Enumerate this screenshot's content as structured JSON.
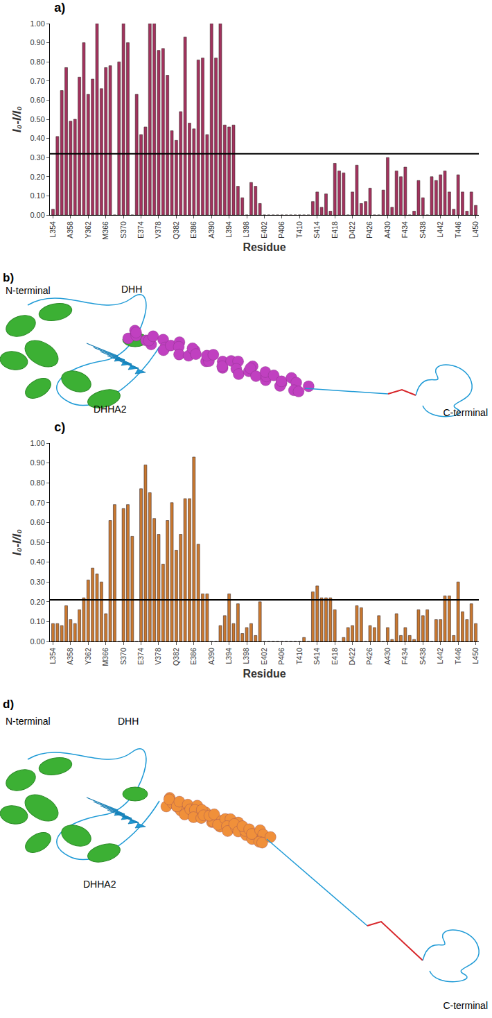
{
  "chart_data": [
    {
      "type": "bar",
      "title": "a)",
      "x_label": "Residue",
      "y_label": "I₀-I/I₀",
      "color": "#a3325e",
      "grid": false,
      "threshold": 0.32,
      "ylim": [
        0,
        1
      ],
      "yticks": [
        {
          "value": 0,
          "label": "0.00"
        },
        {
          "value": 0.1,
          "label": "0.10"
        },
        {
          "value": 0.2,
          "label": "0.20"
        },
        {
          "value": 0.3,
          "label": "0.30"
        },
        {
          "value": 0.4,
          "label": "0.40"
        },
        {
          "value": 0.5,
          "label": "0.50"
        },
        {
          "value": 0.6,
          "label": "0.60"
        },
        {
          "value": 0.7,
          "label": "0.70"
        },
        {
          "value": 0.8,
          "label": "0.80"
        },
        {
          "value": 0.9,
          "label": "0.90"
        },
        {
          "value": 1,
          "label": "1.00"
        }
      ],
      "categories": [
        "L354",
        null,
        null,
        null,
        "A358",
        null,
        null,
        null,
        "Y362",
        null,
        null,
        null,
        "M366",
        null,
        null,
        null,
        "S370",
        null,
        null,
        null,
        "E374",
        null,
        null,
        null,
        "V378",
        null,
        null,
        null,
        "Q382",
        null,
        null,
        null,
        "E386",
        null,
        null,
        null,
        "A390",
        null,
        null,
        null,
        "L394",
        null,
        null,
        null,
        "L398",
        null,
        null,
        null,
        "E402",
        null,
        null,
        null,
        "P406",
        null,
        null,
        null,
        "T410",
        null,
        null,
        null,
        "S414",
        null,
        null,
        null,
        "E418",
        null,
        null,
        null,
        "D422",
        null,
        null,
        null,
        "P426",
        null,
        null,
        null,
        "A430",
        null,
        null,
        null,
        "F434",
        null,
        null,
        null,
        "S438",
        null,
        null,
        null,
        "L442",
        null,
        null,
        null,
        "T446",
        null,
        null,
        null,
        "L450"
      ],
      "values": [
        0.03,
        0.41,
        0.65,
        0.77,
        0.49,
        0.5,
        0.72,
        0.9,
        0.63,
        0.71,
        1.0,
        0.66,
        0.77,
        0.78,
        0,
        0.8,
        1.0,
        0.9,
        0,
        0.63,
        0.42,
        0.46,
        1.0,
        1.0,
        0.86,
        0.87,
        0.73,
        0.44,
        0.39,
        0.54,
        0.93,
        0.48,
        0.45,
        0.81,
        0.82,
        0.42,
        1.0,
        0.82,
        1.0,
        0.47,
        0.46,
        0.47,
        0.15,
        0.09,
        0,
        0.17,
        0.15,
        0.06,
        0,
        0,
        0,
        0,
        0,
        0,
        0,
        0,
        0,
        0,
        0,
        0.07,
        0.12,
        0.04,
        0.11,
        0.02,
        0.27,
        0.23,
        0.22,
        0,
        0.12,
        0.26,
        0.06,
        0.07,
        0.14,
        0,
        0,
        0.13,
        0.3,
        0.04,
        0.23,
        0.2,
        0.25,
        0,
        0.02,
        0.18,
        0.09,
        0,
        0.2,
        0.18,
        0.21,
        0.23,
        0.12,
        0.03,
        0.21,
        0.12,
        0.02,
        0.12,
        0.05
      ]
    },
    {
      "type": "bar",
      "title": "c)",
      "x_label": "Residue",
      "y_label": "I₀-I/I₀",
      "color": "#c9782f",
      "grid": false,
      "threshold": 0.21,
      "ylim": [
        0,
        1
      ],
      "yticks": [
        {
          "value": 0,
          "label": "0.00"
        },
        {
          "value": 0.1,
          "label": "0.10"
        },
        {
          "value": 0.2,
          "label": "0.20"
        },
        {
          "value": 0.3,
          "label": "0.30"
        },
        {
          "value": 0.4,
          "label": "0.40"
        },
        {
          "value": 0.5,
          "label": "0.50"
        },
        {
          "value": 0.6,
          "label": "0.60"
        },
        {
          "value": 0.7,
          "label": "0.70"
        },
        {
          "value": 0.8,
          "label": "0.80"
        },
        {
          "value": 0.9,
          "label": "0.90"
        },
        {
          "value": 1,
          "label": "1.00"
        }
      ],
      "categories": [
        "L354",
        null,
        null,
        null,
        "A358",
        null,
        null,
        null,
        "Y362",
        null,
        null,
        null,
        "M366",
        null,
        null,
        null,
        "S370",
        null,
        null,
        null,
        "E374",
        null,
        null,
        null,
        "V378",
        null,
        null,
        null,
        "Q382",
        null,
        null,
        null,
        "E386",
        null,
        null,
        null,
        "A390",
        null,
        null,
        null,
        "L394",
        null,
        null,
        null,
        "L398",
        null,
        null,
        null,
        "E402",
        null,
        null,
        null,
        "P406",
        null,
        null,
        null,
        "T410",
        null,
        null,
        null,
        "S414",
        null,
        null,
        null,
        "E418",
        null,
        null,
        null,
        "D422",
        null,
        null,
        null,
        "P426",
        null,
        null,
        null,
        "A430",
        null,
        null,
        null,
        "F434",
        null,
        null,
        null,
        "S438",
        null,
        null,
        null,
        "L442",
        null,
        null,
        null,
        "T446",
        null,
        null,
        null,
        "L450"
      ],
      "values": [
        0.09,
        0.09,
        0.08,
        0.18,
        0.11,
        0.09,
        0.16,
        0.22,
        0.31,
        0.37,
        0.34,
        0.3,
        0.14,
        0.61,
        0.69,
        0,
        0.67,
        0.69,
        0.53,
        0,
        0.77,
        0.89,
        0.75,
        0.62,
        0.54,
        0.39,
        0.61,
        0.7,
        0.46,
        0.54,
        0.72,
        0.72,
        0.93,
        0.49,
        0.24,
        0.24,
        0,
        0,
        0.08,
        0.13,
        0.24,
        0.09,
        0.19,
        0.04,
        0.07,
        0.09,
        0.03,
        0.2,
        0,
        0,
        0,
        0,
        0,
        0,
        0,
        0,
        0,
        0.02,
        0,
        0.25,
        0.28,
        0.22,
        0.22,
        0.22,
        0.16,
        0,
        0.02,
        0.07,
        0.08,
        0.18,
        0.17,
        0,
        0.08,
        0.07,
        0.13,
        0,
        0.07,
        0.01,
        0.14,
        0.03,
        0.07,
        0.03,
        0.01,
        0.16,
        0.13,
        0.16,
        0,
        0.11,
        0.11,
        0.23,
        0.23,
        0.03,
        0.3,
        0.15,
        0.11,
        0.19,
        0.09
      ]
    }
  ],
  "structures": [
    {
      "label": "b)",
      "n_terminal": "N-terminal",
      "domain1": "DHH",
      "domain2": "DHHA2",
      "c_terminal": "C-terminal",
      "highlight_color": "#c040c0"
    },
    {
      "label": "d)",
      "n_terminal": "N-terminal",
      "domain1": "DHH",
      "domain2": "DHHA2",
      "c_terminal": "C-terminal",
      "highlight_color": "#f0903a"
    }
  ]
}
